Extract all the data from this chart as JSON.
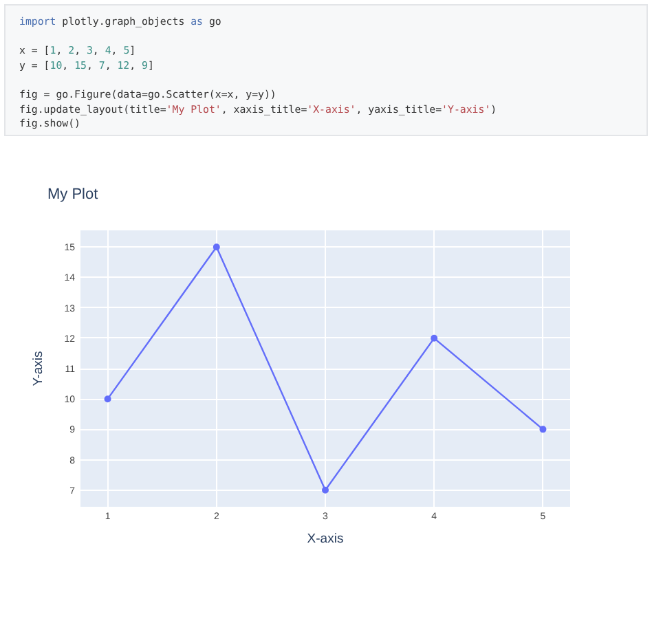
{
  "chart_data": {
    "type": "line",
    "title": "My Plot",
    "xlabel": "X-axis",
    "ylabel": "Y-axis",
    "x": [
      1,
      2,
      3,
      4,
      5
    ],
    "series": [
      {
        "color": "#636efa",
        "values": [
          10,
          15,
          7,
          12,
          9
        ]
      }
    ],
    "xlim": [
      0.75,
      5.25
    ],
    "ylim": [
      6.45,
      15.55
    ],
    "xticks": [
      1,
      2,
      3,
      4,
      5
    ],
    "yticks": [
      7,
      8,
      9,
      10,
      11,
      12,
      13,
      14,
      15
    ],
    "grid": true,
    "marker": "circle",
    "line_style": "solid",
    "annotations": [
      "import plotly.graph_objects as go\n\nx = [1, 2, 3, 4, 5]\ny = [10, 15, 7, 12, 9]\n\nfig = go.Figure(data=go.Scatter(x=x, y=y))\nfig.update_layout(title='My Plot', xaxis_title='X-axis', yaxis_title='Y-axis')\nfig.show()"
    ]
  }
}
